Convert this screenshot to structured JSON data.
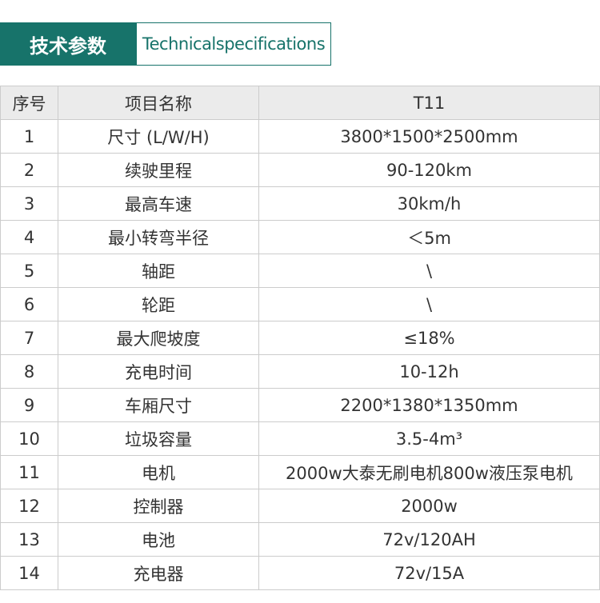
{
  "header": {
    "title": "技术参数",
    "subtitle": "Technicalspecifications"
  },
  "table": {
    "headers": [
      "序号",
      "项目名称",
      "T11"
    ],
    "rows": [
      [
        "1",
        "尺寸 (L/W/H)",
        "3800*1500*2500mm"
      ],
      [
        "2",
        "续驶里程",
        "90-120km"
      ],
      [
        "3",
        "最高车速",
        "30km/h"
      ],
      [
        "4",
        "最小转弯半径",
        "＜5m"
      ],
      [
        "5",
        "轴距",
        "\\"
      ],
      [
        "6",
        "轮距",
        "\\"
      ],
      [
        "7",
        "最大爬坡度",
        "≤18%"
      ],
      [
        "8",
        "充电时间",
        "10-12h"
      ],
      [
        "9",
        "车厢尺寸",
        "2200*1380*1350mm"
      ],
      [
        "10",
        "垃圾容量",
        "3.5-4m³"
      ],
      [
        "11",
        "电机",
        "2000w大泰无刷电机800w液压泵电机"
      ],
      [
        "12",
        "控制器",
        "2000w"
      ],
      [
        "13",
        "电池",
        "72v/120AH"
      ],
      [
        "14",
        "充电器",
        "72v/15A"
      ]
    ]
  }
}
